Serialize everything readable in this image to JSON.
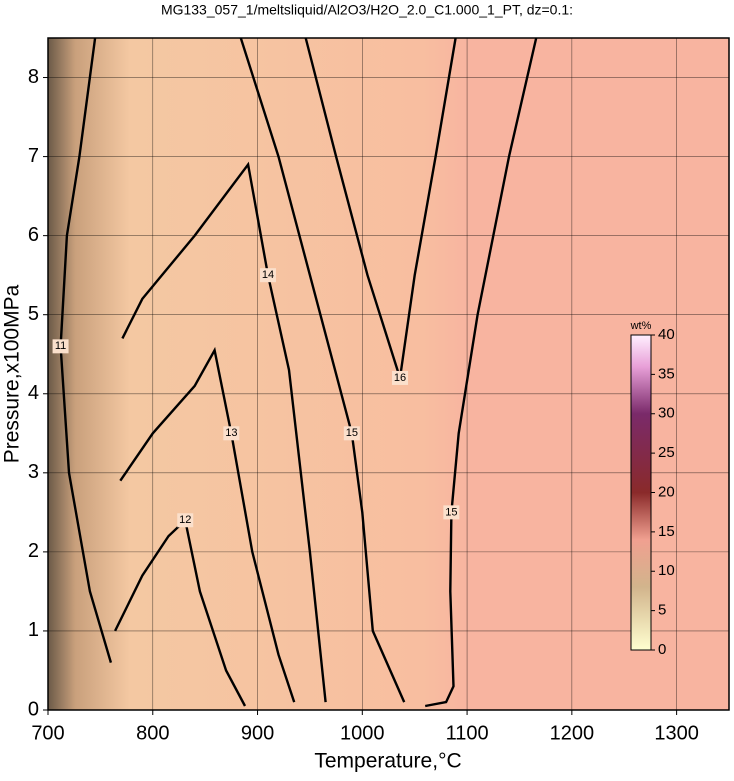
{
  "chart_data": {
    "type": "contour",
    "title": "MG133_057_1/meltsliquid/Al2O3/H2O_2.0_C1.000_1_PT, dz=0.1:",
    "x_label": "Temperature,°C",
    "y_label": "Pressure,x100MPa",
    "xlim": [
      700,
      1350
    ],
    "ylim": [
      0,
      8.5
    ],
    "xticks": [
      700,
      800,
      900,
      1000,
      1100,
      1200,
      1300
    ],
    "yticks": [
      0,
      1,
      2,
      3,
      4,
      5,
      6,
      7,
      8
    ],
    "grid": true,
    "contours": [
      {
        "level": 15,
        "x": [
          1166,
          1140,
          1110,
          1092,
          1085,
          1084,
          1087,
          1080,
          1060
        ],
        "y": [
          8.5,
          7,
          5,
          3.5,
          2.5,
          1.5,
          0.3,
          0.1,
          0.05
        ]
      },
      {
        "level": 16,
        "x": [
          946,
          975,
          1005,
          1036,
          1050,
          1070,
          1089
        ],
        "y": [
          8.5,
          7,
          5.5,
          4.2,
          5.5,
          7,
          8.5
        ]
      },
      {
        "level": 15,
        "x": [
          884,
          920,
          960,
          990,
          1000,
          1010,
          1040
        ],
        "y": [
          8.5,
          7,
          5,
          3.5,
          2.5,
          1,
          0.1
        ]
      },
      {
        "level": 14,
        "x": [
          771,
          790,
          840,
          891,
          910,
          930,
          950,
          965
        ],
        "y": [
          4.7,
          5.2,
          6,
          6.9,
          5.5,
          4.3,
          2,
          0.1
        ]
      },
      {
        "level": 13,
        "x": [
          769,
          800,
          840,
          859,
          875,
          895,
          920,
          935
        ],
        "y": [
          2.9,
          3.5,
          4.1,
          4.55,
          3.5,
          2,
          0.7,
          0.1
        ]
      },
      {
        "level": 12,
        "x": [
          764,
          790,
          815,
          831,
          845,
          870,
          888
        ],
        "y": [
          1,
          1.7,
          2.2,
          2.4,
          1.5,
          0.5,
          0.05
        ]
      },
      {
        "level": 11,
        "x": [
          745,
          730,
          718,
          712,
          720,
          740,
          760
        ],
        "y": [
          8.5,
          7,
          6,
          4.6,
          3,
          1.5,
          0.6
        ]
      }
    ],
    "colorbar": {
      "label": "wt%",
      "lim": [
        0,
        40
      ],
      "ticks": [
        0,
        5,
        10,
        15,
        20,
        25,
        30,
        35,
        40
      ]
    }
  }
}
